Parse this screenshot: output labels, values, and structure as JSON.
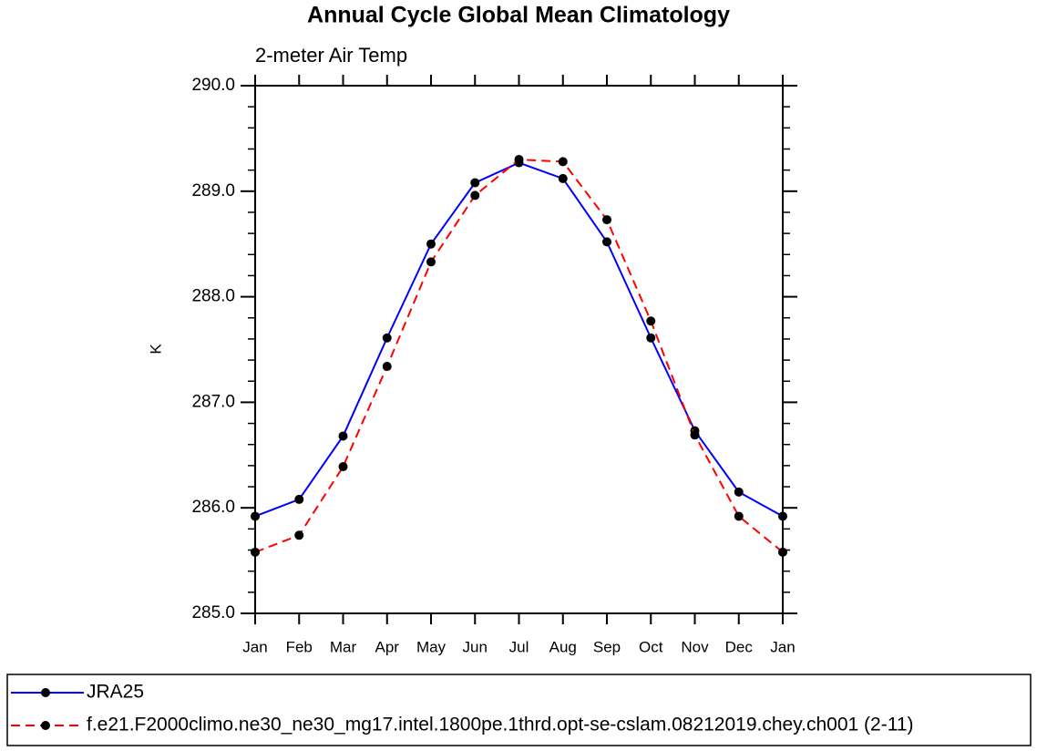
{
  "chart_data": {
    "type": "line",
    "title": "Annual Cycle Global Mean Climatology",
    "subtitle": "2-meter Air Temp",
    "y_label": "K",
    "categories": [
      "Jan",
      "Feb",
      "Mar",
      "Apr",
      "May",
      "Jun",
      "Jul",
      "Aug",
      "Sep",
      "Oct",
      "Nov",
      "Dec",
      "Jan"
    ],
    "series": [
      {
        "name": "JRA25",
        "color": "#0000ff",
        "dash": "solid",
        "values": [
          285.92,
          286.08,
          286.68,
          287.61,
          288.5,
          289.08,
          289.27,
          289.12,
          288.52,
          287.61,
          286.73,
          286.15,
          285.92
        ]
      },
      {
        "name": "f.e21.F2000climo.ne30_ne30_mg17.intel.1800pe.1thrd.opt-se-cslam.08212019.chey.ch001 (2-11)",
        "color": "#ff0000",
        "dash": "dashed",
        "values": [
          285.58,
          285.74,
          286.39,
          287.34,
          288.33,
          288.96,
          289.3,
          289.28,
          288.73,
          287.77,
          286.69,
          285.92,
          285.58
        ]
      }
    ],
    "ylim": [
      285,
      290
    ],
    "yticks": [
      {
        "value": 285,
        "label": "285.0"
      },
      {
        "value": 286,
        "label": "286.0"
      },
      {
        "value": 287,
        "label": "287.0"
      },
      {
        "value": 288,
        "label": "288.0"
      },
      {
        "value": 289,
        "label": "289.0"
      },
      {
        "value": 290,
        "label": "290.0"
      }
    ],
    "yminorticks": [
      285.2,
      285.4,
      285.6,
      285.8,
      286.2,
      286.4,
      286.6,
      286.8,
      287.2,
      287.4,
      287.6,
      287.8,
      288.2,
      288.4,
      288.6,
      288.8,
      289.2,
      289.4,
      289.6,
      289.8
    ],
    "grid": false
  }
}
